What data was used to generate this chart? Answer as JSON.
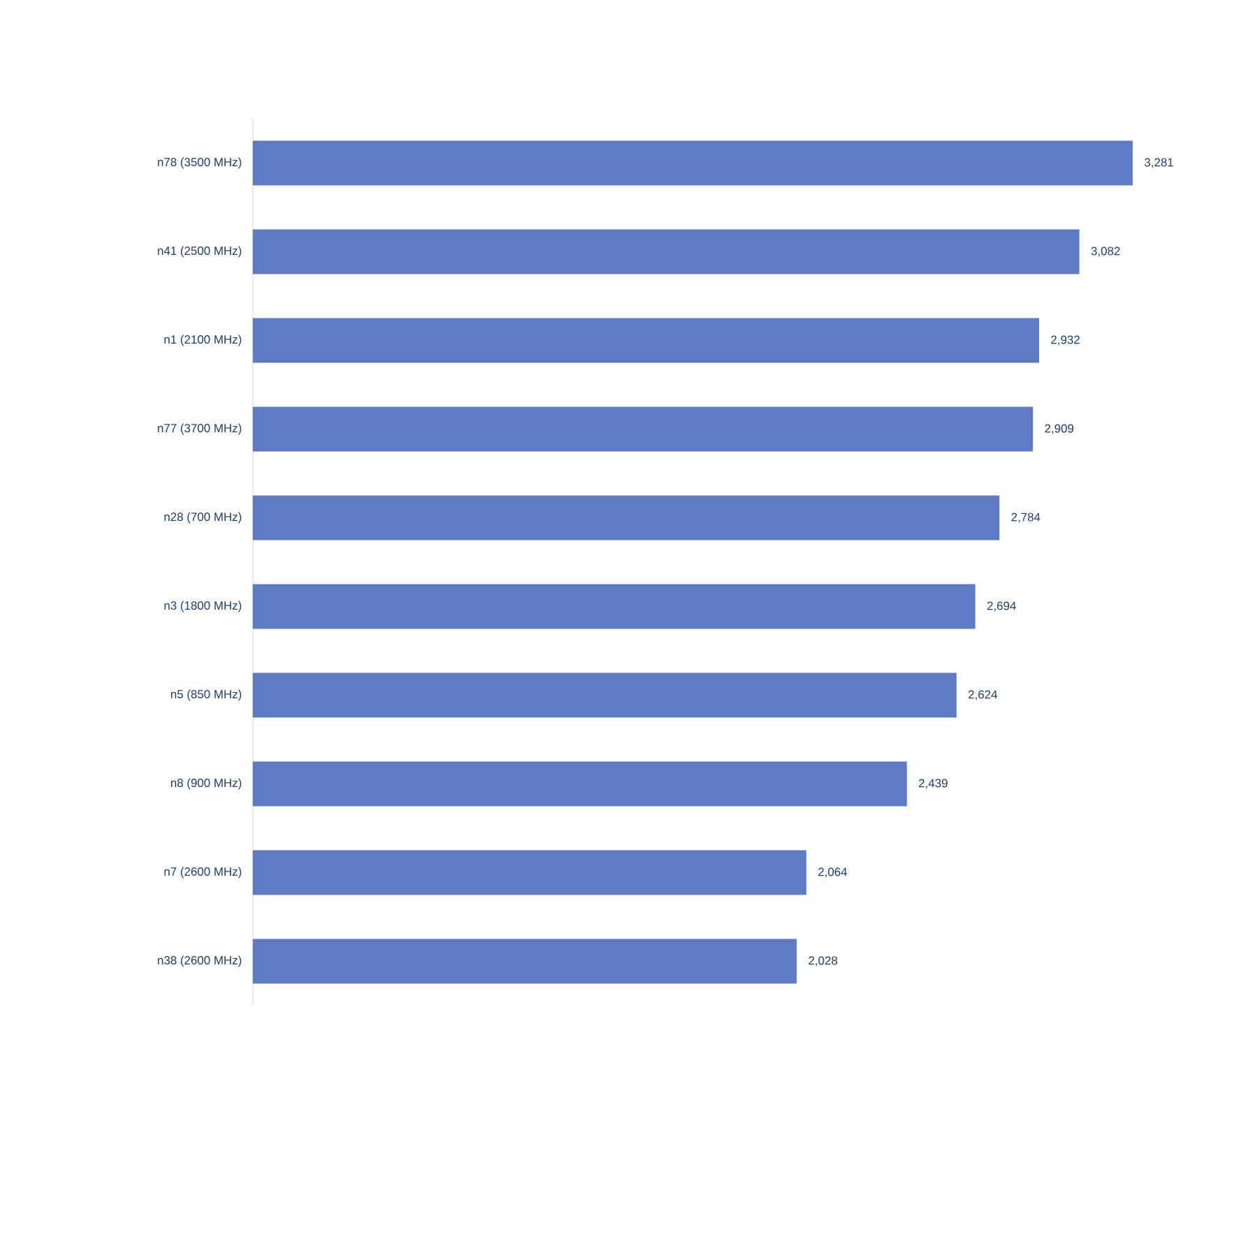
{
  "chart_data": {
    "type": "bar",
    "orientation": "horizontal",
    "categories": [
      "n78 (3500 MHz)",
      "n41 (2500 MHz)",
      "n1 (2100 MHz)",
      "n77 (3700 MHz)",
      "n28 (700 MHz)",
      "n3 (1800 MHz)",
      "n5 (850 MHz)",
      "n8 (900 MHz)",
      "n7 (2600 MHz)",
      "n38 (2600 MHz)"
    ],
    "values": [
      3281,
      3082,
      2932,
      2909,
      2784,
      2694,
      2624,
      2439,
      2064,
      2028
    ],
    "value_labels": [
      "3,281",
      "3,082",
      "2,932",
      "2,909",
      "2,784",
      "2,694",
      "2,624",
      "2,439",
      "2,064",
      "2,028"
    ],
    "color": "#5f7bc4",
    "tick_labels": "y"
  }
}
